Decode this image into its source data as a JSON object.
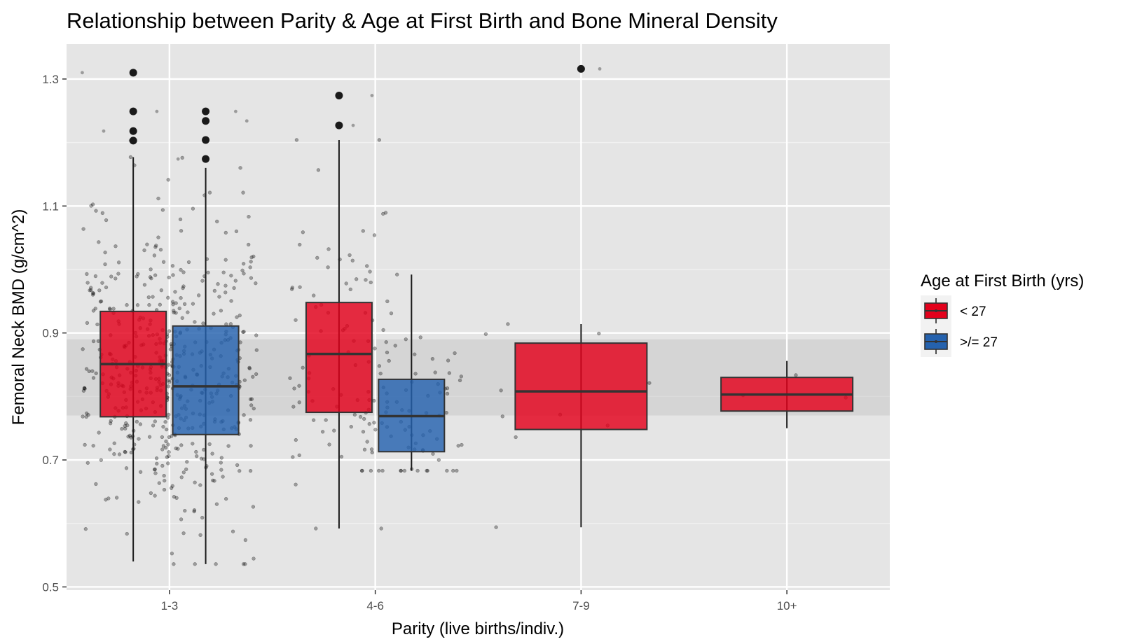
{
  "chart_data": {
    "type": "box",
    "title": "Relationship between Parity & Age at First Birth and Bone Mineral Density",
    "xlabel": "Parity (live births/indiv.)",
    "ylabel": "Femoral Neck BMD (g/cm^2)",
    "ylim": [
      0.495,
      1.355
    ],
    "yticks": [
      0.5,
      0.7,
      0.9,
      1.1,
      1.3
    ],
    "categories": [
      "1-3",
      "4-6",
      "7-9",
      "10+"
    ],
    "reference_band": [
      0.77,
      0.89
    ],
    "legend": {
      "title": "Age at First Birth (yrs)",
      "placement": "right",
      "entries": [
        {
          "label": "< 27",
          "color": "#E3001B"
        },
        {
          "label": ">/= 27",
          "color": "#2562AE"
        }
      ]
    },
    "series": [
      {
        "label": "< 27",
        "color": "#E3001B",
        "boxes": [
          {
            "category": "1-3",
            "whisker_low": 0.54,
            "q1": 0.768,
            "median": 0.851,
            "q3": 0.934,
            "whisker_high": 1.177,
            "outliers": [
              1.203,
              1.218,
              1.249,
              1.31
            ]
          },
          {
            "category": "4-6",
            "whisker_low": 0.592,
            "q1": 0.775,
            "median": 0.867,
            "q3": 0.948,
            "whisker_high": 1.204,
            "outliers": [
              1.227,
              1.274
            ]
          },
          {
            "category": "7-9",
            "whisker_low": 0.594,
            "q1": 0.748,
            "median": 0.808,
            "q3": 0.884,
            "whisker_high": 0.914,
            "outliers": [
              1.316
            ]
          },
          {
            "category": "10+",
            "whisker_low": 0.75,
            "q1": 0.777,
            "median": 0.803,
            "q3": 0.83,
            "whisker_high": 0.856,
            "outliers": []
          }
        ]
      },
      {
        "label": ">/= 27",
        "color": "#2562AE",
        "boxes": [
          {
            "category": "1-3",
            "whisker_low": 0.536,
            "q1": 0.74,
            "median": 0.816,
            "q3": 0.911,
            "whisker_high": 1.16,
            "outliers": [
              1.174,
              1.204,
              1.234,
              1.249
            ]
          },
          {
            "category": "4-6",
            "whisker_low": 0.683,
            "q1": 0.713,
            "median": 0.769,
            "q3": 0.827,
            "whisker_high": 0.992,
            "outliers": []
          }
        ]
      }
    ]
  }
}
